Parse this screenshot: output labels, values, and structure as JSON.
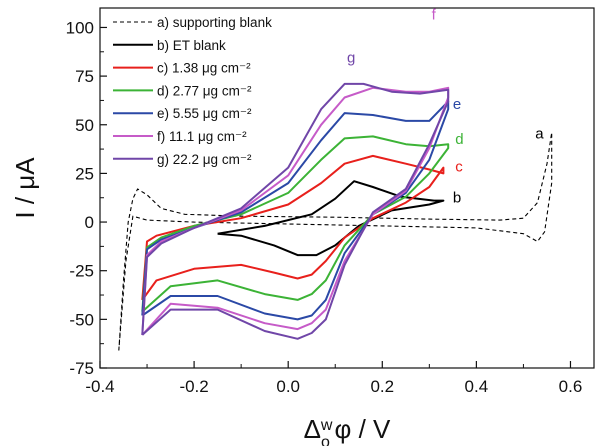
{
  "chart_data": {
    "type": "line",
    "title": "",
    "xlabel": "Δ_o^w φ / V",
    "ylabel": "I / μA",
    "xlim": [
      -0.4,
      0.65
    ],
    "ylim": [
      -75,
      110
    ],
    "x_ticks": [
      -0.4,
      -0.2,
      0.0,
      0.2,
      0.4,
      0.6
    ],
    "x_tick_labels": [
      "-0.4",
      "-0.2",
      "0.0",
      "0.2",
      "0.4",
      "0.6"
    ],
    "y_ticks": [
      -75,
      -50,
      -25,
      0,
      25,
      50,
      75,
      100
    ],
    "y_tick_labels": [
      "-75",
      "-50",
      "-25",
      "0",
      "25",
      "50",
      "75",
      "100"
    ],
    "grid": false,
    "legend_position": "top-left",
    "series": [
      {
        "name": "a) supporting blank",
        "label": "a",
        "color": "#000000",
        "dash": true,
        "points": [
          [
            -0.36,
            -66
          ],
          [
            -0.35,
            -30
          ],
          [
            -0.34,
            0
          ],
          [
            -0.33,
            12
          ],
          [
            -0.32,
            17
          ],
          [
            -0.3,
            14
          ],
          [
            -0.27,
            7
          ],
          [
            -0.22,
            4
          ],
          [
            -0.1,
            3
          ],
          [
            0.1,
            2.5
          ],
          [
            0.3,
            1.5
          ],
          [
            0.45,
            1
          ],
          [
            0.5,
            2
          ],
          [
            0.53,
            10
          ],
          [
            0.55,
            30
          ],
          [
            0.56,
            46
          ],
          [
            0.56,
            20
          ],
          [
            0.545,
            -5
          ],
          [
            0.53,
            -10
          ],
          [
            0.5,
            -6
          ],
          [
            0.4,
            -3
          ],
          [
            0.2,
            -2
          ],
          [
            0.0,
            -1
          ],
          [
            -0.2,
            0
          ],
          [
            -0.3,
            1
          ],
          [
            -0.33,
            3
          ],
          [
            -0.345,
            -20
          ],
          [
            -0.36,
            -66
          ]
        ]
      },
      {
        "name": "b) ET blank",
        "label": "b",
        "color": "#000000",
        "dash": false,
        "points": [
          [
            -0.15,
            -6
          ],
          [
            -0.05,
            -2
          ],
          [
            0.05,
            4
          ],
          [
            0.1,
            12
          ],
          [
            0.14,
            21
          ],
          [
            0.18,
            18
          ],
          [
            0.24,
            13
          ],
          [
            0.31,
            11
          ],
          [
            0.33,
            11
          ],
          [
            0.3,
            9
          ],
          [
            0.22,
            6
          ],
          [
            0.15,
            -2
          ],
          [
            0.1,
            -12
          ],
          [
            0.06,
            -17
          ],
          [
            0.02,
            -17
          ],
          [
            -0.03,
            -12
          ],
          [
            -0.1,
            -7
          ],
          [
            -0.15,
            -6
          ]
        ]
      },
      {
        "name": "c) 1.38 μg cm⁻²",
        "label": "c",
        "color": "#e8201c",
        "dash": false,
        "points": [
          [
            -0.31,
            -40
          ],
          [
            -0.3,
            -10
          ],
          [
            -0.28,
            -7
          ],
          [
            -0.2,
            -2
          ],
          [
            -0.1,
            2
          ],
          [
            0.0,
            9
          ],
          [
            0.07,
            20
          ],
          [
            0.12,
            30
          ],
          [
            0.18,
            34
          ],
          [
            0.25,
            30
          ],
          [
            0.3,
            27
          ],
          [
            0.33,
            25
          ],
          [
            0.33,
            28
          ],
          [
            0.3,
            18
          ],
          [
            0.25,
            10
          ],
          [
            0.18,
            2
          ],
          [
            0.12,
            -8
          ],
          [
            0.08,
            -20
          ],
          [
            0.05,
            -27
          ],
          [
            0.02,
            -29
          ],
          [
            -0.03,
            -26
          ],
          [
            -0.1,
            -22
          ],
          [
            -0.2,
            -24
          ],
          [
            -0.28,
            -30
          ],
          [
            -0.31,
            -40
          ]
        ]
      },
      {
        "name": "d) 2.77 μg cm⁻²",
        "label": "d",
        "color": "#3cb336",
        "dash": false,
        "points": [
          [
            -0.31,
            -46
          ],
          [
            -0.3,
            -13
          ],
          [
            -0.27,
            -8
          ],
          [
            -0.2,
            -2
          ],
          [
            -0.1,
            4
          ],
          [
            0.0,
            15
          ],
          [
            0.07,
            32
          ],
          [
            0.12,
            43
          ],
          [
            0.18,
            44
          ],
          [
            0.25,
            40
          ],
          [
            0.3,
            39
          ],
          [
            0.34,
            40
          ],
          [
            0.34,
            38
          ],
          [
            0.3,
            25
          ],
          [
            0.25,
            13
          ],
          [
            0.18,
            4
          ],
          [
            0.12,
            -12
          ],
          [
            0.08,
            -30
          ],
          [
            0.05,
            -37
          ],
          [
            0.02,
            -40
          ],
          [
            -0.05,
            -37
          ],
          [
            -0.15,
            -30
          ],
          [
            -0.25,
            -33
          ],
          [
            -0.31,
            -46
          ]
        ]
      },
      {
        "name": "e) 5.55 μg cm⁻²",
        "label": "e",
        "color": "#2b49a6",
        "dash": false,
        "points": [
          [
            -0.31,
            -48
          ],
          [
            -0.3,
            -14
          ],
          [
            -0.27,
            -9
          ],
          [
            -0.2,
            -3
          ],
          [
            -0.1,
            5
          ],
          [
            0.0,
            20
          ],
          [
            0.07,
            42
          ],
          [
            0.12,
            56
          ],
          [
            0.18,
            55
          ],
          [
            0.25,
            52
          ],
          [
            0.3,
            52
          ],
          [
            0.34,
            62
          ],
          [
            0.34,
            58
          ],
          [
            0.3,
            32
          ],
          [
            0.25,
            15
          ],
          [
            0.18,
            4
          ],
          [
            0.12,
            -16
          ],
          [
            0.08,
            -40
          ],
          [
            0.05,
            -48
          ],
          [
            0.02,
            -50
          ],
          [
            -0.05,
            -47
          ],
          [
            -0.15,
            -38
          ],
          [
            -0.25,
            -38
          ],
          [
            -0.31,
            -48
          ]
        ]
      },
      {
        "name": "f)  11.1 μg cm⁻²",
        "label": "f",
        "color": "#c65bc8",
        "dash": false,
        "points": [
          [
            -0.31,
            -58
          ],
          [
            -0.3,
            -17
          ],
          [
            -0.27,
            -10
          ],
          [
            -0.2,
            -3
          ],
          [
            -0.1,
            6
          ],
          [
            0.0,
            24
          ],
          [
            0.07,
            50
          ],
          [
            0.12,
            64
          ],
          [
            0.18,
            69
          ],
          [
            0.25,
            67
          ],
          [
            0.3,
            67
          ],
          [
            0.34,
            69
          ],
          [
            0.34,
            64
          ],
          [
            0.3,
            38
          ],
          [
            0.25,
            16
          ],
          [
            0.18,
            4
          ],
          [
            0.12,
            -20
          ],
          [
            0.08,
            -45
          ],
          [
            0.05,
            -52
          ],
          [
            0.02,
            -55
          ],
          [
            -0.05,
            -52
          ],
          [
            -0.15,
            -44
          ],
          [
            -0.25,
            -42
          ],
          [
            -0.31,
            -58
          ]
        ]
      },
      {
        "name": "g) 22.2 μg cm⁻²",
        "label": "g",
        "color": "#7046a8",
        "dash": false,
        "points": [
          [
            -0.31,
            -58
          ],
          [
            -0.3,
            -18
          ],
          [
            -0.27,
            -11
          ],
          [
            -0.2,
            -3
          ],
          [
            -0.1,
            7
          ],
          [
            0.0,
            28
          ],
          [
            0.07,
            58
          ],
          [
            0.12,
            71
          ],
          [
            0.16,
            71
          ],
          [
            0.22,
            67
          ],
          [
            0.28,
            66
          ],
          [
            0.34,
            68
          ],
          [
            0.34,
            62
          ],
          [
            0.3,
            40
          ],
          [
            0.25,
            17
          ],
          [
            0.18,
            5
          ],
          [
            0.12,
            -22
          ],
          [
            0.08,
            -50
          ],
          [
            0.05,
            -57
          ],
          [
            0.02,
            -60
          ],
          [
            -0.05,
            -56
          ],
          [
            -0.15,
            -45
          ],
          [
            -0.25,
            -45
          ],
          [
            -0.31,
            -58
          ]
        ]
      }
    ],
    "curve_labels": [
      {
        "text": "a",
        "x": 0.525,
        "y": 43,
        "color": "#000000"
      },
      {
        "text": "b",
        "x": 0.35,
        "y": 10,
        "color": "#000000"
      },
      {
        "text": "c",
        "x": 0.355,
        "y": 26,
        "color": "#e8201c"
      },
      {
        "text": "d",
        "x": 0.355,
        "y": 40,
        "color": "#3cb336"
      },
      {
        "text": "e",
        "x": 0.35,
        "y": 58,
        "color": "#2b49a6"
      },
      {
        "text": "f",
        "x": 0.305,
        "y": 104,
        "color": "#c65bc8"
      },
      {
        "text": "g",
        "x": 0.125,
        "y": 82,
        "color": "#7046a8"
      }
    ]
  }
}
